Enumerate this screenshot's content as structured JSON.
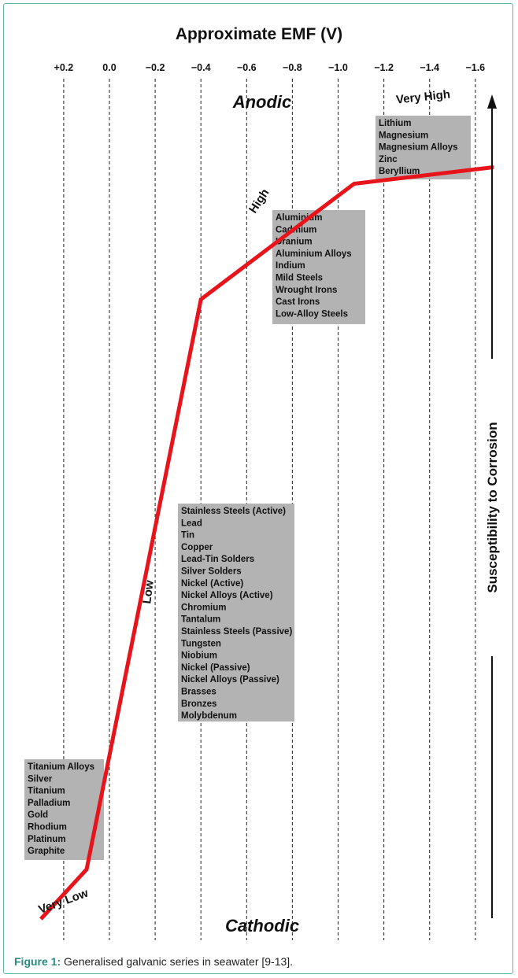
{
  "chart_data": {
    "type": "line",
    "title": "Approximate EMF (V)",
    "xlabel": "Approximate EMF (V)",
    "x_ticks": [
      0.2,
      0.0,
      -0.2,
      -0.4,
      -0.6,
      -0.8,
      -1.0,
      -1.2,
      -1.4,
      -1.6
    ],
    "x_tick_labels": [
      "+0.2",
      "0.0",
      "−0.2",
      "−0.4",
      "−0.6",
      "−0.8",
      "−1.0",
      "−1.2",
      "−1.4",
      "−1.6"
    ],
    "xlim": [
      0.3,
      -1.7
    ],
    "grid": "vertical-dashed",
    "series": [
      {
        "color": "#e8141c",
        "x": [
          0.3,
          0.1,
          -0.4,
          -1.07,
          -1.68
        ],
        "y": [
          0.0,
          0.06,
          0.75,
          0.89,
          0.91
        ]
      }
    ],
    "annotations": {
      "top": "Anodic",
      "bottom": "Cathodic",
      "right_axis": "Susceptibility to Corrosion",
      "zones": [
        "Very High",
        "High",
        "Low",
        "Very Low"
      ]
    },
    "groups": [
      {
        "zone": "Very High",
        "materials": [
          "Lithium",
          "Magnesium",
          "Magnesium Alloys",
          "Zinc",
          "Beryllium"
        ]
      },
      {
        "zone": "High",
        "materials": [
          "Aluminium",
          "Cadmium",
          "Uranium",
          "Aluminium Alloys",
          "Indium",
          "Mild Steels",
          "Wrought Irons",
          "Cast Irons",
          "Low-Alloy Steels"
        ]
      },
      {
        "zone": "Low",
        "materials": [
          "Stainless Steels (Active)",
          "Lead",
          "Tin",
          "Copper",
          "Lead-Tin Solders",
          "Silver Solders",
          "Nickel (Active)",
          "Nickel Alloys (Active)",
          "Chromium",
          "Tantalum",
          "Stainless Steels (Passive)",
          "Tungsten",
          "Niobium",
          "Nickel (Passive)",
          "Nickel Alloys (Passive)",
          "Brasses",
          "Bronzes",
          "Molybdenum"
        ]
      },
      {
        "zone": "Very Low",
        "materials": [
          "Titanium Alloys",
          "Silver",
          "Titanium",
          "Palladium",
          "Gold",
          "Rhodium",
          "Platinum",
          "Graphite"
        ]
      }
    ],
    "colors": {
      "line": "#e8141c",
      "box": "#b3b3b3",
      "frame": "#5fb6ae"
    }
  },
  "caption": {
    "label": "Figure 1:",
    "text": "Generalised galvanic series in seawater [9-13]."
  }
}
